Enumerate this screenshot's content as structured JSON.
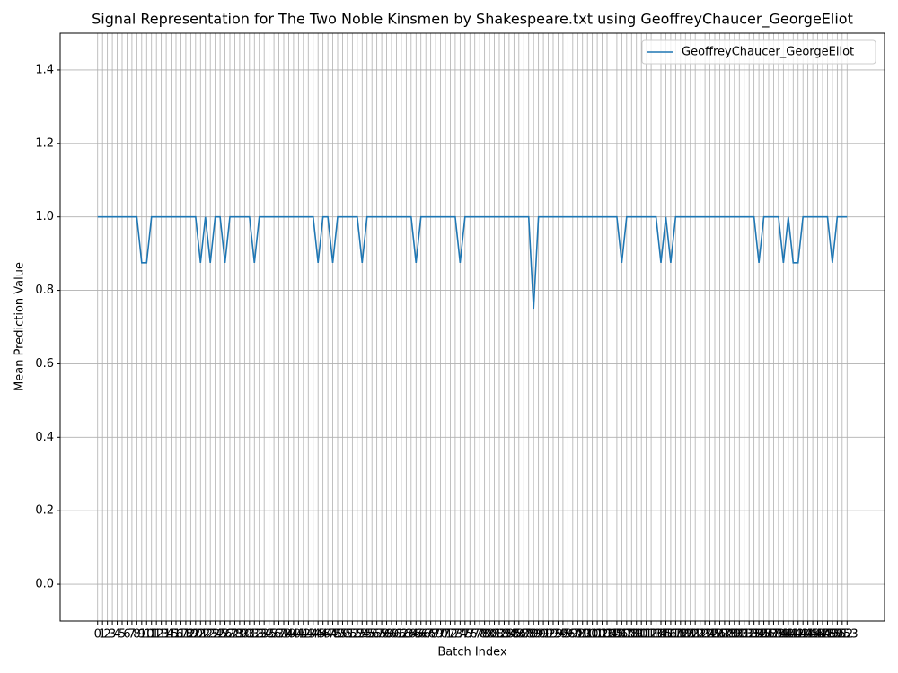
{
  "chart_data": {
    "type": "line",
    "title": "Signal Representation for The Two Noble Kinsmen by Shakespeare.txt using GeoffreyChaucer_GeorgeEliot",
    "x_label": "Batch Index",
    "y_label": "Mean Prediction Value",
    "x": [
      0,
      1,
      2,
      3,
      4,
      5,
      6,
      7,
      8,
      9,
      10,
      11,
      12,
      13,
      14,
      15,
      16,
      17,
      18,
      19,
      20,
      21,
      22,
      23,
      24,
      25,
      26,
      27,
      28,
      29,
      30,
      31,
      32,
      33,
      34,
      35,
      36,
      37,
      38,
      39,
      40,
      41,
      42,
      43,
      44,
      45,
      46,
      47,
      48,
      49,
      50,
      51,
      52,
      53,
      54,
      55,
      56,
      57,
      58,
      59,
      60,
      61,
      62,
      63,
      64,
      65,
      66,
      67,
      68,
      69,
      70,
      71,
      72,
      73,
      74,
      75,
      76,
      77,
      78,
      79,
      80,
      81,
      82,
      83,
      84,
      85,
      86,
      87,
      88,
      89,
      90,
      91,
      92,
      93,
      94,
      95,
      96,
      97,
      98,
      99,
      100,
      101,
      102,
      103,
      104,
      105,
      106,
      107,
      108,
      109,
      110,
      111,
      112,
      113,
      114,
      115,
      116,
      117,
      118,
      119,
      120,
      121,
      122,
      123,
      124,
      125,
      126,
      127,
      128,
      129,
      130,
      131,
      132,
      133,
      134,
      135,
      136,
      137,
      138,
      139,
      140,
      141,
      142,
      143,
      144,
      145,
      146,
      147,
      148,
      149,
      150,
      151,
      152,
      153
    ],
    "series": [
      {
        "name": "GeoffreyChaucer_GeorgeEliot",
        "color": "#1f77b4",
        "values": [
          1,
          1,
          1,
          1,
          1,
          1,
          1,
          1,
          1,
          0.875,
          0.875,
          1,
          1,
          1,
          1,
          1,
          1,
          1,
          1,
          1,
          1,
          0.875,
          1,
          0.875,
          1,
          1,
          0.875,
          1,
          1,
          1,
          1,
          1,
          0.875,
          1,
          1,
          1,
          1,
          1,
          1,
          1,
          1,
          1,
          1,
          1,
          1,
          0.875,
          1,
          1,
          0.875,
          1,
          1,
          1,
          1,
          1,
          0.875,
          1,
          1,
          1,
          1,
          1,
          1,
          1,
          1,
          1,
          1,
          0.875,
          1,
          1,
          1,
          1,
          1,
          1,
          1,
          1,
          0.875,
          1,
          1,
          1,
          1,
          1,
          1,
          1,
          1,
          1,
          1,
          1,
          1,
          1,
          1,
          0.75,
          1,
          1,
          1,
          1,
          1,
          1,
          1,
          1,
          1,
          1,
          1,
          1,
          1,
          1,
          1,
          1,
          1,
          0.875,
          1,
          1,
          1,
          1,
          1,
          1,
          1,
          0.875,
          1,
          0.875,
          1,
          1,
          1,
          1,
          1,
          1,
          1,
          1,
          1,
          1,
          1,
          1,
          1,
          1,
          1,
          1,
          1,
          0.875,
          1,
          1,
          1,
          1,
          0.875,
          1,
          0.875,
          0.875,
          1,
          1,
          1,
          1,
          1,
          1,
          0.875,
          1,
          1,
          1
        ]
      }
    ],
    "xlim": [
      -7.65,
      160.65
    ],
    "xticks": [
      0,
      1,
      2,
      3,
      4,
      5,
      6,
      7,
      8,
      9,
      10,
      11,
      12,
      13,
      14,
      15,
      16,
      17,
      18,
      19,
      20,
      21,
      22,
      23,
      24,
      25,
      26,
      27,
      28,
      29,
      30,
      31,
      32,
      33,
      34,
      35,
      36,
      37,
      38,
      39,
      40,
      41,
      42,
      43,
      44,
      45,
      46,
      47,
      48,
      49,
      50,
      51,
      52,
      53,
      54,
      55,
      56,
      57,
      58,
      59,
      60,
      61,
      62,
      63,
      64,
      65,
      66,
      67,
      68,
      69,
      70,
      71,
      72,
      73,
      74,
      75,
      76,
      77,
      78,
      79,
      80,
      81,
      82,
      83,
      84,
      85,
      86,
      87,
      88,
      89,
      90,
      91,
      92,
      93,
      94,
      95,
      96,
      97,
      98,
      99,
      100,
      101,
      102,
      103,
      104,
      105,
      106,
      107,
      108,
      109,
      110,
      111,
      112,
      113,
      114,
      115,
      116,
      117,
      118,
      119,
      120,
      121,
      122,
      123,
      124,
      125,
      126,
      127,
      128,
      129,
      130,
      131,
      132,
      133,
      134,
      135,
      136,
      137,
      138,
      139,
      140,
      141,
      142,
      143,
      144,
      145,
      146,
      147,
      148,
      149,
      150,
      151,
      152,
      153
    ],
    "ylim": [
      -0.1,
      1.5
    ],
    "yticks": [
      {
        "value": 0,
        "label": "0.0"
      },
      0.2,
      0.4,
      0.6,
      0.8,
      {
        "value": 1,
        "label": "1.0"
      },
      1.2,
      1.4
    ],
    "grid": true,
    "legend": "upper right"
  }
}
